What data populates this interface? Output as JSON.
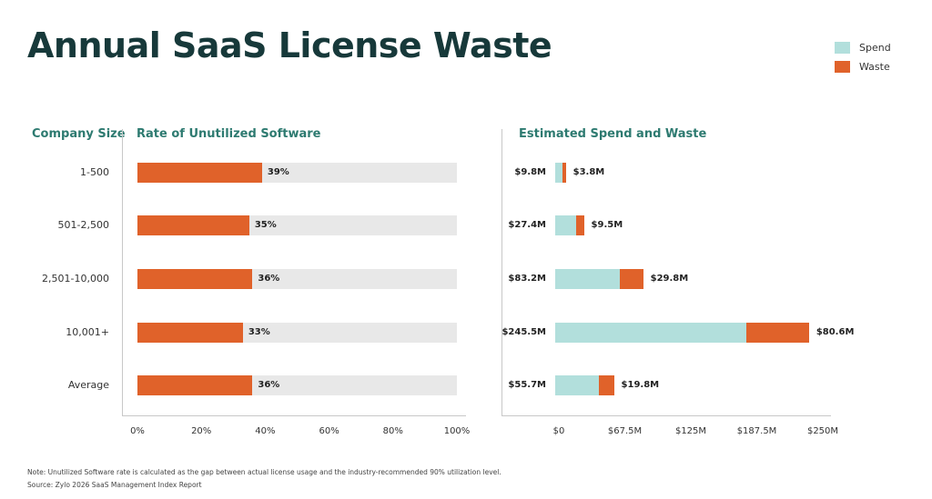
{
  "title": "Annual SaaS License Waste",
  "legend": [
    {
      "label": "Spend",
      "color": "#b2dfdc"
    },
    {
      "label": "Waste",
      "color": "#e0622a"
    }
  ],
  "chart_data": [
    {
      "type": "bar",
      "orientation": "horizontal",
      "title": "Rate of Unutilized Software",
      "category_label": "Company Size",
      "categories": [
        "1-500",
        "501-2,500",
        "2,501-10,000",
        "10,001+",
        "Average"
      ],
      "values": [
        39,
        35,
        36,
        33,
        36
      ],
      "value_labels": [
        "39%",
        "35%",
        "36%",
        "33%",
        "36%"
      ],
      "xlim": [
        0,
        100
      ],
      "xticks": [
        "0%",
        "20%",
        "40%",
        "60%",
        "80%",
        "100%"
      ],
      "bar_color": "#e0622a",
      "track_color": "#e8e8e8"
    },
    {
      "type": "bar",
      "orientation": "horizontal",
      "stacked": true,
      "title": "Estimated Spend and Waste",
      "categories": [
        "1-500",
        "501-2,500",
        "2,501-10,000",
        "10,001+",
        "Average"
      ],
      "series": [
        {
          "name": "Spend",
          "values": [
            9.8,
            27.4,
            83.2,
            245.5,
            55.7
          ],
          "labels": [
            "$9.8M",
            "$27.4M",
            "$83.2M",
            "$245.5M",
            "$55.7M"
          ],
          "color": "#b2dfdc"
        },
        {
          "name": "Waste",
          "values": [
            3.8,
            9.5,
            29.8,
            80.6,
            19.8
          ],
          "labels": [
            "$3.8M",
            "$9.5M",
            "$29.8M",
            "$80.6M",
            "$19.8M"
          ],
          "color": "#e0622a"
        }
      ],
      "xticks": [
        "$0",
        "$67.5M",
        "$125M",
        "$187.5M",
        "$250M"
      ]
    }
  ],
  "note": "Note: Unutilized Software rate is calculated as the gap between actual license usage and the industry-recommended 90% utilization level.",
  "source": "Source: Zylo 2026 SaaS Management Index Report"
}
